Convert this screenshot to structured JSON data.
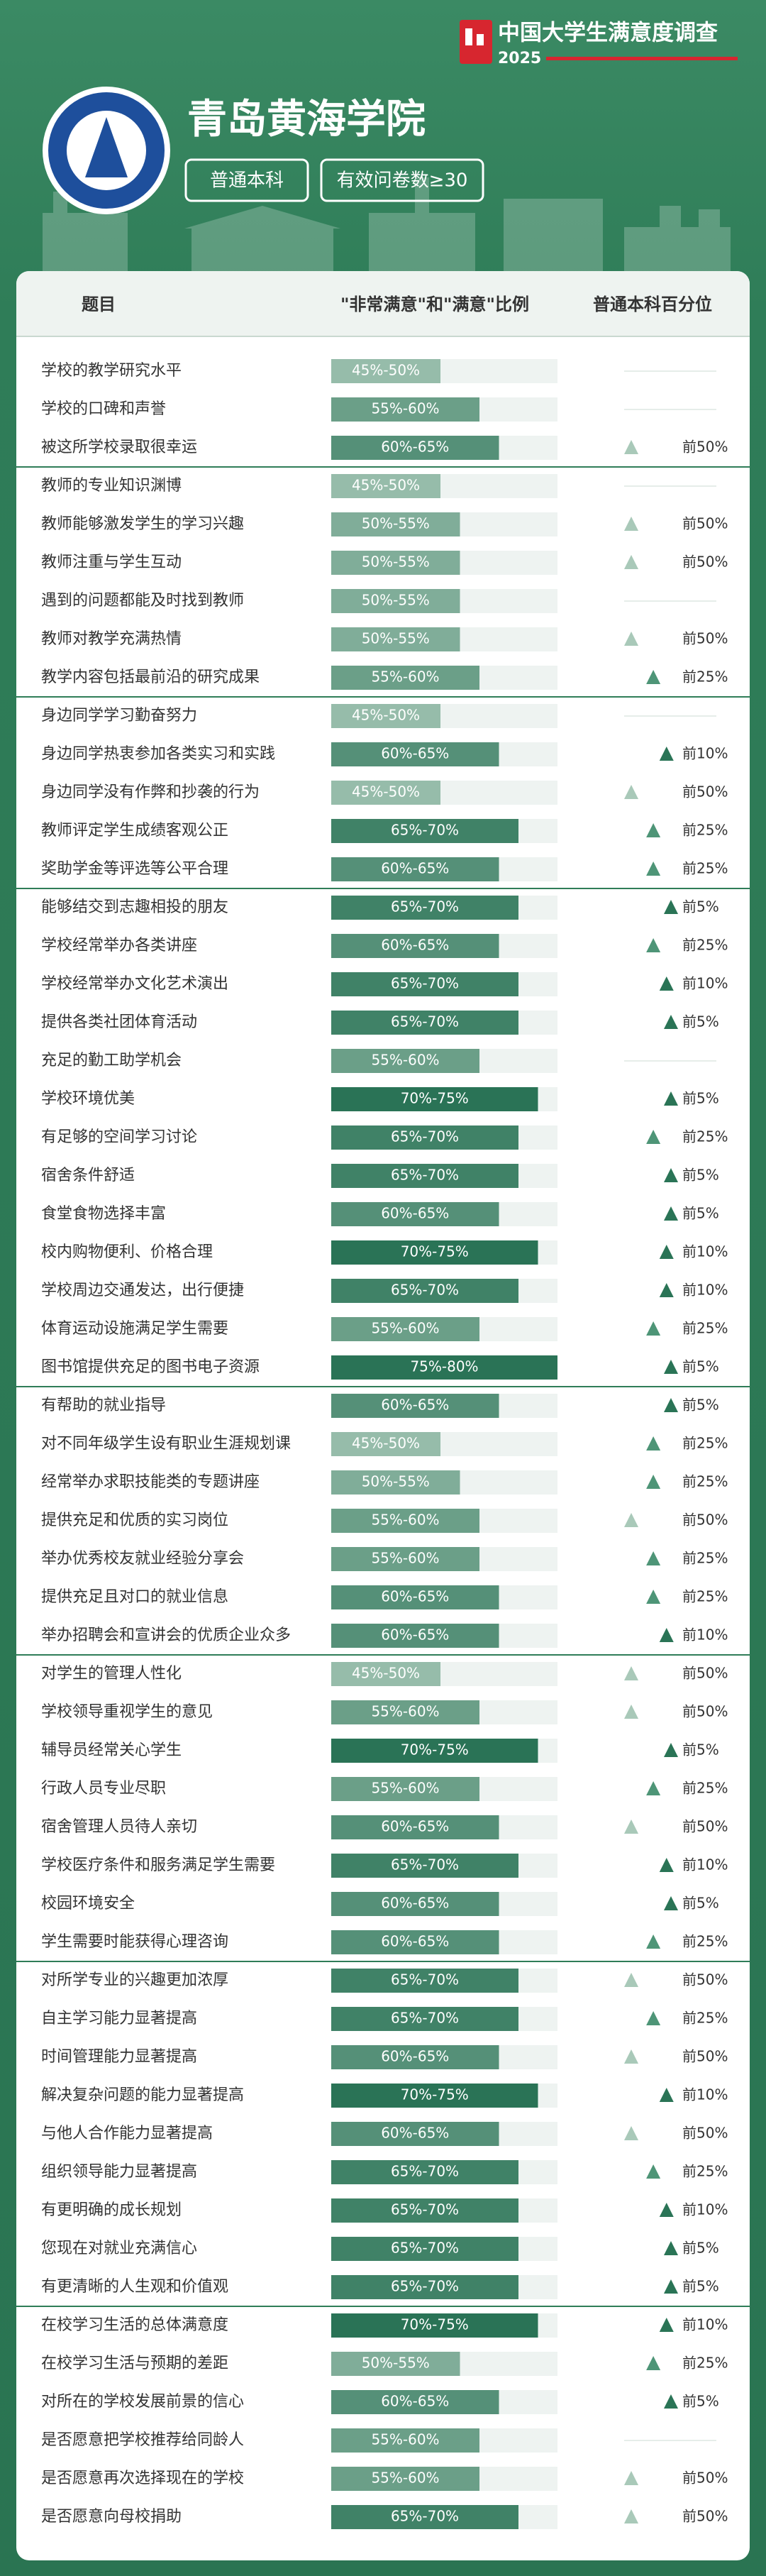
{
  "header": {
    "brand": "中国大学生满意度调查",
    "year": "2025",
    "school": "青岛黄海学院",
    "tags": [
      "普通本科",
      "有效问卷数≥30"
    ]
  },
  "table": {
    "columns": [
      "题目",
      "\"非常满意\"和\"满意\"比例",
      "普通本科百分位"
    ],
    "groups": [
      {
        "rows": [
          [
            "学校的教学研究水平",
            "45%-50%",
            null
          ],
          [
            "学校的口碑和声誉",
            "55%-60%",
            null
          ],
          [
            "被这所学校录取很幸运",
            "60%-65%",
            "前50%"
          ]
        ]
      },
      {
        "rows": [
          [
            "教师的专业知识渊博",
            "45%-50%",
            null
          ],
          [
            "教师能够激发学生的学习兴趣",
            "50%-55%",
            "前50%"
          ],
          [
            "教师注重与学生互动",
            "50%-55%",
            "前50%"
          ],
          [
            "遇到的问题都能及时找到教师",
            "50%-55%",
            null
          ],
          [
            "教师对教学充满热情",
            "50%-55%",
            "前50%"
          ],
          [
            "教学内容包括最前沿的研究成果",
            "55%-60%",
            "前25%"
          ]
        ]
      },
      {
        "rows": [
          [
            "身边同学学习勤奋努力",
            "45%-50%",
            null
          ],
          [
            "身边同学热衷参加各类实习和实践",
            "60%-65%",
            "前10%"
          ],
          [
            "身边同学没有作弊和抄袭的行为",
            "45%-50%",
            "前50%"
          ],
          [
            "教师评定学生成绩客观公正",
            "65%-70%",
            "前25%"
          ],
          [
            "奖助学金等评选等公平合理",
            "60%-65%",
            "前25%"
          ]
        ]
      },
      {
        "rows": [
          [
            "能够结交到志趣相投的朋友",
            "65%-70%",
            "前5%"
          ],
          [
            "学校经常举办各类讲座",
            "60%-65%",
            "前25%"
          ],
          [
            "学校经常举办文化艺术演出",
            "65%-70%",
            "前10%"
          ],
          [
            "提供各类社团体育活动",
            "65%-70%",
            "前5%"
          ],
          [
            "充足的勤工助学机会",
            "55%-60%",
            null
          ],
          [
            "学校环境优美",
            "70%-75%",
            "前5%"
          ],
          [
            "有足够的空间学习讨论",
            "65%-70%",
            "前25%"
          ],
          [
            "宿舍条件舒适",
            "65%-70%",
            "前5%"
          ],
          [
            "食堂食物选择丰富",
            "60%-65%",
            "前5%"
          ],
          [
            "校内购物便利、价格合理",
            "70%-75%",
            "前10%"
          ],
          [
            "学校周边交通发达，出行便捷",
            "65%-70%",
            "前10%"
          ],
          [
            "体育运动设施满足学生需要",
            "55%-60%",
            "前25%"
          ],
          [
            "图书馆提供充足的图书电子资源",
            "75%-80%",
            "前5%"
          ]
        ]
      },
      {
        "rows": [
          [
            "有帮助的就业指导",
            "60%-65%",
            "前5%"
          ],
          [
            "对不同年级学生设有职业生涯规划课",
            "45%-50%",
            "前25%"
          ],
          [
            "经常举办求职技能类的专题讲座",
            "50%-55%",
            "前25%"
          ],
          [
            "提供充足和优质的实习岗位",
            "55%-60%",
            "前50%"
          ],
          [
            "举办优秀校友就业经验分享会",
            "55%-60%",
            "前25%"
          ],
          [
            "提供充足且对口的就业信息",
            "60%-65%",
            "前25%"
          ],
          [
            "举办招聘会和宣讲会的优质企业众多",
            "60%-65%",
            "前10%"
          ]
        ]
      },
      {
        "rows": [
          [
            "对学生的管理人性化",
            "45%-50%",
            "前50%"
          ],
          [
            "学校领导重视学生的意见",
            "55%-60%",
            "前50%"
          ],
          [
            "辅导员经常关心学生",
            "70%-75%",
            "前5%"
          ],
          [
            "行政人员专业尽职",
            "55%-60%",
            "前25%"
          ],
          [
            "宿舍管理人员待人亲切",
            "60%-65%",
            "前50%"
          ],
          [
            "学校医疗条件和服务满足学生需要",
            "65%-70%",
            "前10%"
          ],
          [
            "校园环境安全",
            "60%-65%",
            "前5%"
          ],
          [
            "学生需要时能获得心理咨询",
            "60%-65%",
            "前25%"
          ]
        ]
      },
      {
        "rows": [
          [
            "对所学专业的兴趣更加浓厚",
            "65%-70%",
            "前50%"
          ],
          [
            "自主学习能力显著提高",
            "65%-70%",
            "前25%"
          ],
          [
            "时间管理能力显著提高",
            "60%-65%",
            "前50%"
          ],
          [
            "解决复杂问题的能力显著提高",
            "70%-75%",
            "前10%"
          ],
          [
            "与他人合作能力显著提高",
            "60%-65%",
            "前50%"
          ],
          [
            "组织领导能力显著提高",
            "65%-70%",
            "前25%"
          ],
          [
            "有更明确的成长规划",
            "65%-70%",
            "前10%"
          ],
          [
            "您现在对就业充满信心",
            "65%-70%",
            "前5%"
          ],
          [
            "有更清晰的人生观和价值观",
            "65%-70%",
            "前5%"
          ]
        ]
      },
      {
        "rows": [
          [
            "在校学习生活的总体满意度",
            "70%-75%",
            "前10%"
          ],
          [
            "在校学习生活与预期的差距",
            "50%-55%",
            "前25%"
          ],
          [
            "对所在的学校发展前景的信心",
            "60%-65%",
            "前5%"
          ],
          [
            "是否愿意把学校推荐给同龄人",
            "55%-60%",
            null
          ],
          [
            "是否愿意再次选择现在的学校",
            "55%-60%",
            "前50%"
          ],
          [
            "是否愿意向母校捐助",
            "65%-70%",
            "前50%"
          ]
        ]
      }
    ]
  }
}
